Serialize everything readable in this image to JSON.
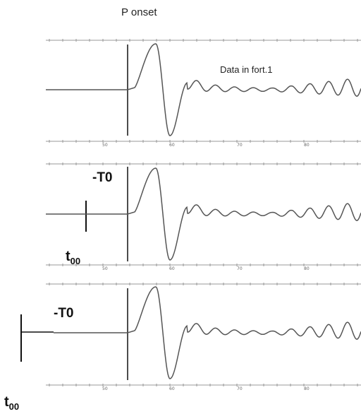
{
  "labels": {
    "p_onset": "P onset",
    "data_note": "Data in fort.1",
    "minus_t0": "-T0",
    "t00_base": "t",
    "t00_sub": "00"
  },
  "axis": {
    "tick_labels": [
      "50",
      "60",
      "70",
      "80"
    ]
  },
  "colors": {
    "trace": "#555555",
    "axis": "#888888",
    "marker": "#111111"
  }
}
